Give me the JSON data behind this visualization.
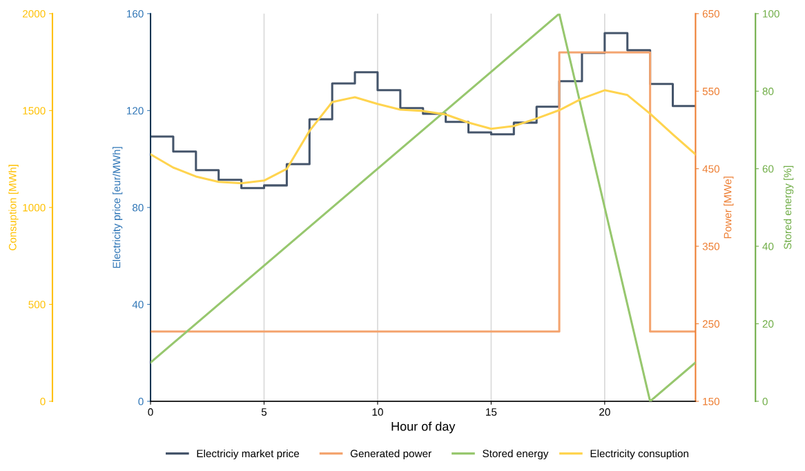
{
  "chart_data": [
    {
      "type": "step",
      "xlabel": "Hour of day",
      "ylabel": "Electricity price [eur/MWh]",
      "y2label": "Power [MWe]",
      "y3label": "Stored energy [%]",
      "xlim": [
        0,
        24
      ],
      "xticks": [
        0,
        5,
        10,
        15,
        20
      ],
      "ylim": [
        0,
        160
      ],
      "yticks": [
        0,
        40,
        80,
        120,
        160
      ],
      "y2lim": [
        150,
        650
      ],
      "y2ticks": [
        150,
        250,
        350,
        450,
        550,
        650
      ],
      "y3lim": [
        0,
        100
      ],
      "y3ticks": [
        0,
        20,
        40,
        60,
        80,
        100
      ],
      "grid": "x",
      "legend": "bottom",
      "marker": "none",
      "line_style": "solid",
      "series": [
        {
          "name": "Electriciy market price",
          "color": "#44546a",
          "x": [
            0,
            1,
            2,
            3,
            4,
            5,
            6,
            7,
            8,
            9,
            10,
            11,
            12,
            13,
            14,
            15,
            16,
            17,
            18,
            19,
            20,
            21,
            22,
            23,
            24
          ],
          "values": [
            109.3,
            103.1,
            95.4,
            91.4,
            88.0,
            89.1,
            97.9,
            116.4,
            131.2,
            135.8,
            128.4,
            121.0,
            118.7,
            115.3,
            111.0,
            110.2,
            115.0,
            121.6,
            132.1,
            143.8,
            152.0,
            144.9,
            131.0,
            121.9,
            121.9
          ]
        },
        {
          "name": "Generated power",
          "type": "step",
          "axis": "y2",
          "color": "#f4a46f",
          "x": [
            0,
            18,
            22,
            24
          ],
          "values": [
            240,
            600,
            240,
            240
          ]
        },
        {
          "name": "Stored energy",
          "type": "line",
          "axis": "y3",
          "color": "#97c76e",
          "x": [
            0,
            18,
            22,
            24
          ],
          "values": [
            10,
            100,
            0,
            10
          ]
        }
      ]
    },
    {
      "type": "line",
      "ylabel": "Consuption [MWh]",
      "xlim": [
        0,
        24
      ],
      "ylim": [
        0,
        2000
      ],
      "yticks": [
        0,
        500,
        1000,
        1500,
        2000
      ],
      "tick_labels": "y",
      "legend": "bottom",
      "marker": "none",
      "line_style": "solid",
      "series": [
        {
          "name": "Electricity consuption",
          "color": "#ffd44f",
          "x": [
            0,
            1,
            2,
            3,
            4,
            5,
            6,
            7,
            8,
            9,
            10,
            11,
            12,
            13,
            14,
            15,
            16,
            17,
            18,
            19,
            20,
            21,
            22,
            23,
            24
          ],
          "values": [
            1274,
            1206,
            1160,
            1132,
            1125,
            1139,
            1199,
            1395,
            1544,
            1569,
            1534,
            1505,
            1498,
            1480,
            1438,
            1406,
            1420,
            1459,
            1502,
            1562,
            1605,
            1580,
            1484,
            1377,
            1274
          ]
        }
      ]
    }
  ]
}
